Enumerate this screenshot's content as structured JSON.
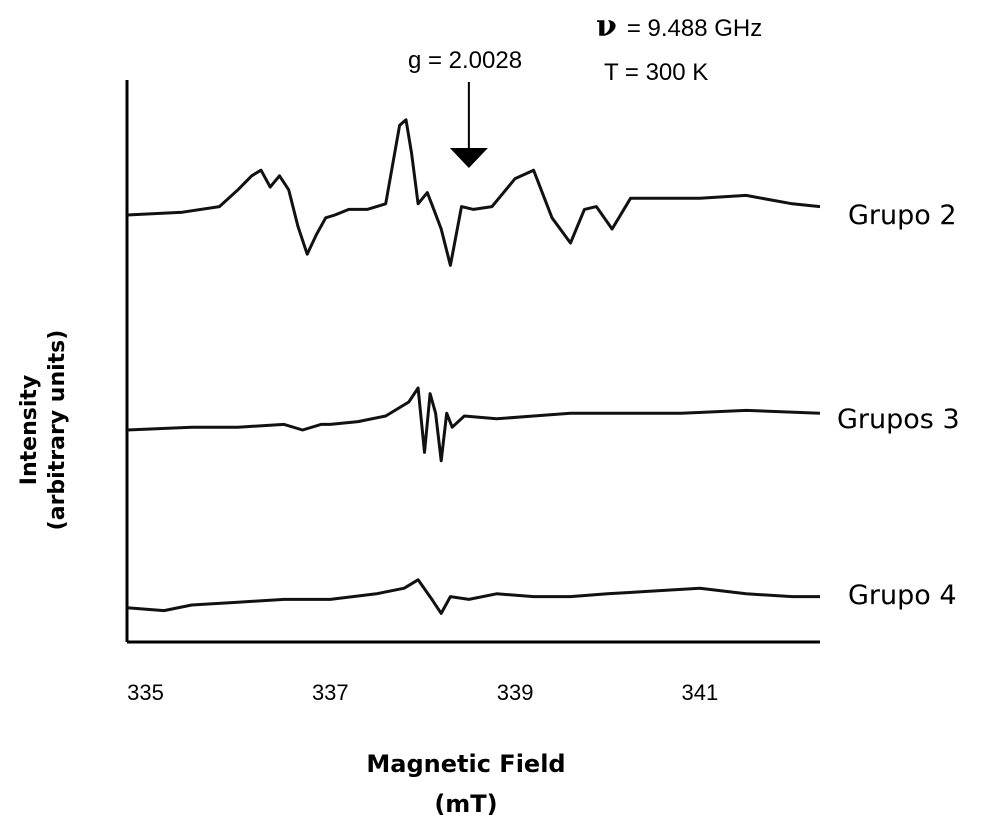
{
  "chart_data": {
    "type": "line",
    "xlabel": "Magnetic Field",
    "xunit": "(mT)",
    "ylabel": "Intensity",
    "yunit": "(arbitrary units)",
    "xlim": [
      334.8,
      342.3
    ],
    "xticks": [
      335,
      337,
      339,
      341
    ],
    "xtick_labels": [
      "335",
      "337",
      "339",
      "341"
    ],
    "grid": false,
    "annotations": {
      "frequency_symbol": "ν",
      "frequency": "= 9.488 GHz",
      "temperature": "T = 300 K",
      "g_marker": "g = 2.0028",
      "g_marker_field": 338.5
    },
    "series": [
      {
        "name": "Grupo 2",
        "x": [
          334.8,
          335.4,
          335.8,
          336.0,
          336.15,
          336.25,
          336.35,
          336.45,
          336.55,
          336.65,
          336.75,
          336.85,
          336.95,
          337.05,
          337.2,
          337.4,
          337.6,
          337.75,
          337.82,
          337.88,
          337.95,
          338.05,
          338.12,
          338.2,
          338.3,
          338.42,
          338.55,
          338.75,
          339.0,
          339.2,
          339.4,
          339.6,
          339.75,
          339.88,
          340.05,
          340.25,
          340.5,
          341.0,
          341.5,
          342.0,
          342.3
        ],
        "y": [
          0.0,
          0.1,
          0.3,
          0.9,
          1.4,
          1.6,
          1.0,
          1.4,
          0.9,
          -0.4,
          -1.4,
          -0.7,
          -0.1,
          0.0,
          0.2,
          0.2,
          0.4,
          3.2,
          3.4,
          2.2,
          0.4,
          0.8,
          0.2,
          -0.5,
          -1.8,
          0.3,
          0.2,
          0.3,
          1.3,
          1.6,
          -0.1,
          -1.0,
          0.2,
          0.3,
          -0.5,
          0.6,
          0.6,
          0.6,
          0.7,
          0.4,
          0.3
        ]
      },
      {
        "name": "Grupos 3",
        "x": [
          334.8,
          335.5,
          336.0,
          336.5,
          336.7,
          336.9,
          337.0,
          337.3,
          337.6,
          337.85,
          337.95,
          338.02,
          338.08,
          338.14,
          338.2,
          338.26,
          338.32,
          338.45,
          338.8,
          339.2,
          339.6,
          340.2,
          340.8,
          341.5,
          342.3
        ],
        "y": [
          0.0,
          0.1,
          0.1,
          0.2,
          0.0,
          0.2,
          0.2,
          0.3,
          0.5,
          1.0,
          1.5,
          -0.8,
          1.3,
          0.6,
          -1.1,
          0.6,
          0.1,
          0.5,
          0.4,
          0.5,
          0.6,
          0.6,
          0.6,
          0.7,
          0.6
        ]
      },
      {
        "name": "Grupo 4",
        "x": [
          334.8,
          335.2,
          335.5,
          336.0,
          336.5,
          337.0,
          337.5,
          337.8,
          337.95,
          338.1,
          338.2,
          338.3,
          338.5,
          338.8,
          339.2,
          339.6,
          340.0,
          340.5,
          341.0,
          341.5,
          342.0,
          342.3
        ],
        "y": [
          -0.1,
          -0.2,
          0.0,
          0.1,
          0.2,
          0.2,
          0.4,
          0.6,
          0.9,
          0.2,
          -0.3,
          0.3,
          0.2,
          0.4,
          0.3,
          0.3,
          0.4,
          0.5,
          0.6,
          0.4,
          0.3,
          0.3
        ]
      }
    ]
  }
}
